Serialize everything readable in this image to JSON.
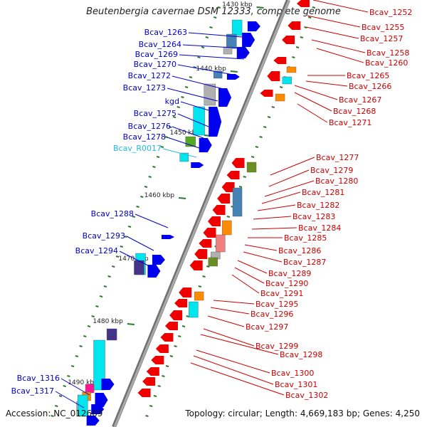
{
  "title": "Beutenbergia cavernae DSM 12333, complete genome",
  "footer": {
    "accession": "Accession: NC_012669",
    "topology": "Topology: circular;",
    "length": "Length: 4,669,183 bp;",
    "genes": "Genes: 4,250"
  },
  "colors": {
    "backbone": "#8a8a8a",
    "forward_label": "#0000cc",
    "reverse_label": "#cc0000",
    "rna_label": "#22bbdd",
    "tick": "#2a7a2a",
    "gene_forward": "#0000ee",
    "gene_reverse": "#ee0000",
    "cog_cyan": "#00e5ee",
    "cog_blue": "#4682b4",
    "cog_orange": "#ff8c00",
    "cog_green": "#55aa22",
    "cog_purple": "#443388",
    "cog_gray": "#b0b0b0",
    "cog_pink": "#f08080",
    "cog_olive": "#6b8e23",
    "cog_magenta": "#ff1493"
  },
  "kbp_ticks": [
    "1430 kbp",
    "1440 kbp",
    "1450 kbp",
    "1460 kbp",
    "1470 kbp",
    "1480 kbp",
    "1490 kbp"
  ],
  "left_labels": [
    {
      "text": "Bcav_1263",
      "type": "forward"
    },
    {
      "text": "Bcav_1264",
      "type": "forward"
    },
    {
      "text": "Bcav_1269",
      "type": "forward"
    },
    {
      "text": "Bcav_1270",
      "type": "forward"
    },
    {
      "text": "Bcav_1272",
      "type": "forward"
    },
    {
      "text": "Bcav_1273",
      "type": "forward"
    },
    {
      "text": "kgd",
      "type": "forward"
    },
    {
      "text": "Bcav_1275",
      "type": "forward"
    },
    {
      "text": "Bcav_1276",
      "type": "forward"
    },
    {
      "text": "Bcav_1278",
      "type": "forward"
    },
    {
      "text": "Bcav_R0017",
      "type": "rna"
    },
    {
      "text": "Bcav_1288",
      "type": "forward"
    },
    {
      "text": "Bcav_1293",
      "type": "forward"
    },
    {
      "text": "Bcav_1294",
      "type": "forward"
    },
    {
      "text": "Bcav_1316",
      "type": "forward"
    },
    {
      "text": "Bcav_1317",
      "type": "forward"
    }
  ],
  "right_labels": [
    "Bcav_1252",
    "Bcav_1255",
    "Bcav_1257",
    "Bcav_1258",
    "Bcav_1260",
    "Bcav_1265",
    "Bcav_1266",
    "Bcav_1267",
    "Bcav_1268",
    "Bcav_1271",
    "Bcav_1277",
    "Bcav_1279",
    "Bcav_1280",
    "Bcav_1281",
    "Bcav_1282",
    "Bcav_1283",
    "Bcav_1284",
    "Bcav_1285",
    "Bcav_1286",
    "Bcav_1287",
    "Bcav_1289",
    "Bcav_1290",
    "Bcav_1291",
    "Bcav_1295",
    "Bcav_1296",
    "Bcav_1297",
    "Bcav_1299",
    "Bcav_1298",
    "Bcav_1300",
    "Bcav_1301",
    "Bcav_1302"
  ]
}
